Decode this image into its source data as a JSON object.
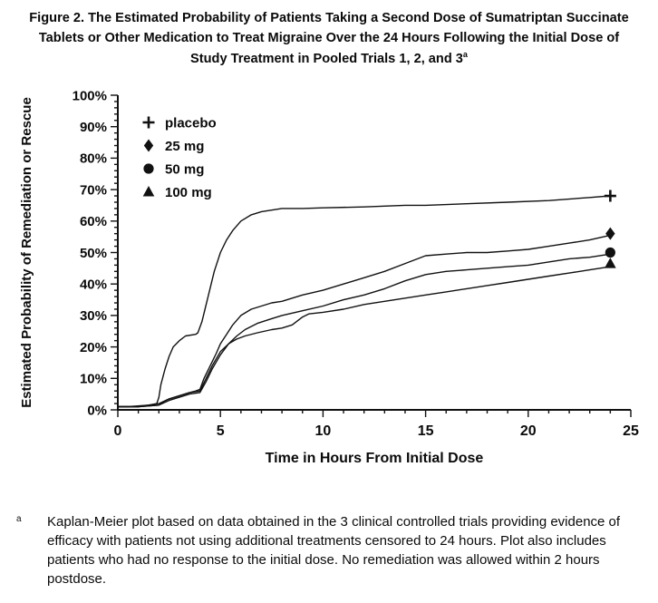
{
  "header": {
    "title_lines": [
      "Figure 2. The Estimated Probability of Patients Taking a Second Dose of Sumatriptan Succinate",
      "Tablets or Other Medication to Treat Migraine Over the 24 Hours Following the Initial Dose of",
      "Study Treatment in Pooled Trials 1, 2, and 3"
    ],
    "title_superscript": "a"
  },
  "chart_data": {
    "type": "line",
    "title": "",
    "xlabel": "Time in Hours From Initial Dose",
    "ylabel": "Estimated Probability of Remediation or Rescue",
    "xlim": [
      0,
      25
    ],
    "ylim": [
      0,
      100
    ],
    "x_major_ticks": [
      0,
      5,
      10,
      15,
      20,
      25
    ],
    "x_tick_labels": [
      "0",
      "5",
      "10",
      "15",
      "20",
      "25"
    ],
    "x_minor_step": 1,
    "y_major_step": 10,
    "y_minor_step": 2,
    "y_tick_labels": [
      "0%",
      "10%",
      "20%",
      "30%",
      "40%",
      "50%",
      "60%",
      "70%",
      "80%",
      "90%",
      "100%"
    ],
    "grid": false,
    "line_color": "#111111",
    "legend": {
      "position": "upper-left-inside",
      "items": [
        {
          "label": "placebo",
          "marker": "plus"
        },
        {
          "label": "25 mg",
          "marker": "diamond"
        },
        {
          "label": "50 mg",
          "marker": "circle"
        },
        {
          "label": "100 mg",
          "marker": "triangle"
        }
      ]
    },
    "series": [
      {
        "name": "placebo",
        "marker": "plus",
        "marker_xy": [
          24,
          68
        ],
        "x": [
          0,
          0.5,
          1.5,
          1.9,
          2.0,
          2.1,
          2.3,
          2.5,
          2.7,
          3.0,
          3.3,
          3.8,
          3.9,
          4.1,
          4.4,
          4.7,
          5.0,
          5.3,
          5.6,
          6.0,
          6.5,
          7.0,
          7.5,
          8,
          9,
          10,
          12,
          14,
          15,
          17,
          19,
          21,
          23,
          24
        ],
        "y": [
          1,
          1,
          1.5,
          2,
          4,
          8,
          13,
          17,
          20,
          22,
          23.5,
          24,
          24.5,
          28,
          36,
          44,
          50,
          54,
          57,
          60,
          62,
          63,
          63.5,
          64,
          64,
          64.2,
          64.5,
          65,
          65,
          65.5,
          66,
          66.5,
          67.5,
          68
        ]
      },
      {
        "name": "25 mg",
        "marker": "diamond",
        "marker_xy": [
          24,
          56
        ],
        "x": [
          0,
          1,
          2,
          2.2,
          2.5,
          3,
          3.5,
          3.8,
          4.0,
          4.2,
          4.5,
          4.8,
          5.0,
          5.3,
          5.6,
          6.0,
          6.5,
          7,
          7.5,
          8,
          8.5,
          9,
          10,
          11,
          12,
          13,
          14,
          15,
          16,
          17,
          18,
          19,
          20,
          21,
          22,
          23,
          24
        ],
        "y": [
          1,
          1,
          1.5,
          2.5,
          3.5,
          4.5,
          5.5,
          6,
          6.5,
          10,
          14,
          18,
          21,
          24,
          27,
          30,
          32,
          33,
          34,
          34.5,
          35.5,
          36.5,
          38,
          40,
          42,
          44,
          46.5,
          49,
          49.5,
          50,
          50,
          50.5,
          51,
          52,
          53,
          54,
          55.5
        ]
      },
      {
        "name": "50 mg",
        "marker": "circle",
        "marker_xy": [
          24,
          50
        ],
        "x": [
          0,
          1,
          2,
          2.5,
          3,
          3.5,
          4.0,
          4.3,
          4.6,
          5.0,
          5.4,
          5.8,
          6.2,
          6.8,
          7.5,
          8,
          9,
          10,
          11,
          12,
          13,
          14,
          15,
          16,
          17,
          18,
          19,
          20,
          21,
          22,
          23,
          24
        ],
        "y": [
          1,
          1,
          1.5,
          3,
          4,
          5,
          5.5,
          9,
          13,
          17.5,
          21,
          23.5,
          25.5,
          27.5,
          29,
          30,
          31.5,
          33,
          35,
          36.5,
          38.5,
          41,
          43,
          44,
          44.5,
          45,
          45.5,
          46,
          47,
          48,
          48.5,
          49.5
        ]
      },
      {
        "name": "100 mg",
        "marker": "triangle",
        "marker_xy": [
          24,
          46.5
        ],
        "x": [
          0,
          1,
          2,
          2.5,
          3,
          3.5,
          4.0,
          4.3,
          4.6,
          5.0,
          5.4,
          5.8,
          6.2,
          6.8,
          7.5,
          8,
          8.5,
          9,
          9.3,
          10,
          11,
          12,
          13,
          14,
          15,
          16,
          17,
          18,
          19,
          20,
          21,
          22,
          23,
          24
        ],
        "y": [
          1,
          1,
          2,
          3.5,
          4.5,
          5.5,
          6,
          10,
          14,
          18.5,
          21,
          22.5,
          23.5,
          24.5,
          25.5,
          26,
          27,
          29.5,
          30.5,
          31,
          32,
          33.5,
          34.5,
          35.5,
          36.5,
          37.5,
          38.5,
          39.5,
          40.5,
          41.5,
          42.5,
          43.5,
          44.5,
          45.5
        ]
      }
    ]
  },
  "footnote": {
    "marker": "a",
    "text": "Kaplan-Meier plot based on data obtained in the 3 clinical controlled trials providing evidence of efficacy with patients not using additional treatments censored to 24 hours. Plot also includes patients who had no response to the initial dose. No remediation was allowed within 2 hours postdose."
  }
}
